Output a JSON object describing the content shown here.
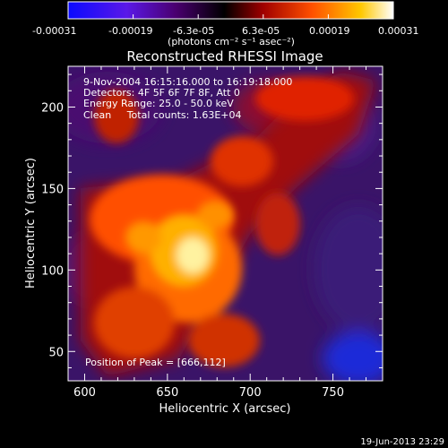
{
  "colorbar": {
    "ticks": [
      "-0.00031",
      "-0.00019",
      "-6.3e-05",
      "6.3e-05",
      "0.00019",
      "0.00031"
    ],
    "units": "(photons cm⁻² s⁻¹ asec⁻²)",
    "colors": [
      "#0a0aff",
      "#7a20d0",
      "#3a0050",
      "#000000",
      "#b00000",
      "#ff6000",
      "#ffd000",
      "#ffffff"
    ]
  },
  "image": {
    "title": "Reconstructed RHESSI Image",
    "info": [
      "9-Nov-2004 16:15:16.000 to 16:19:18.000",
      "Detectors: 4F 5F 6F 7F 8F, Att 0",
      "Energy Range: 25.0 - 50.0 keV",
      "Clean     Total counts: 1.63E+04"
    ],
    "peak_label": "Position of Peak = [666,112]",
    "x_label": "Heliocentric X (arcsec)",
    "y_label": "Heliocentric Y (arcsec)",
    "x_ticks": [
      "600",
      "650",
      "700",
      "750"
    ],
    "x_tick_values": [
      600,
      650,
      700,
      750
    ],
    "y_ticks": [
      "50",
      "100",
      "150",
      "200"
    ],
    "y_tick_values": [
      50,
      100,
      150,
      200
    ],
    "x_range": [
      590,
      780
    ],
    "y_range": [
      32,
      225
    ]
  },
  "footer": {
    "timestamp": "19-Jun-2013 23:29"
  }
}
